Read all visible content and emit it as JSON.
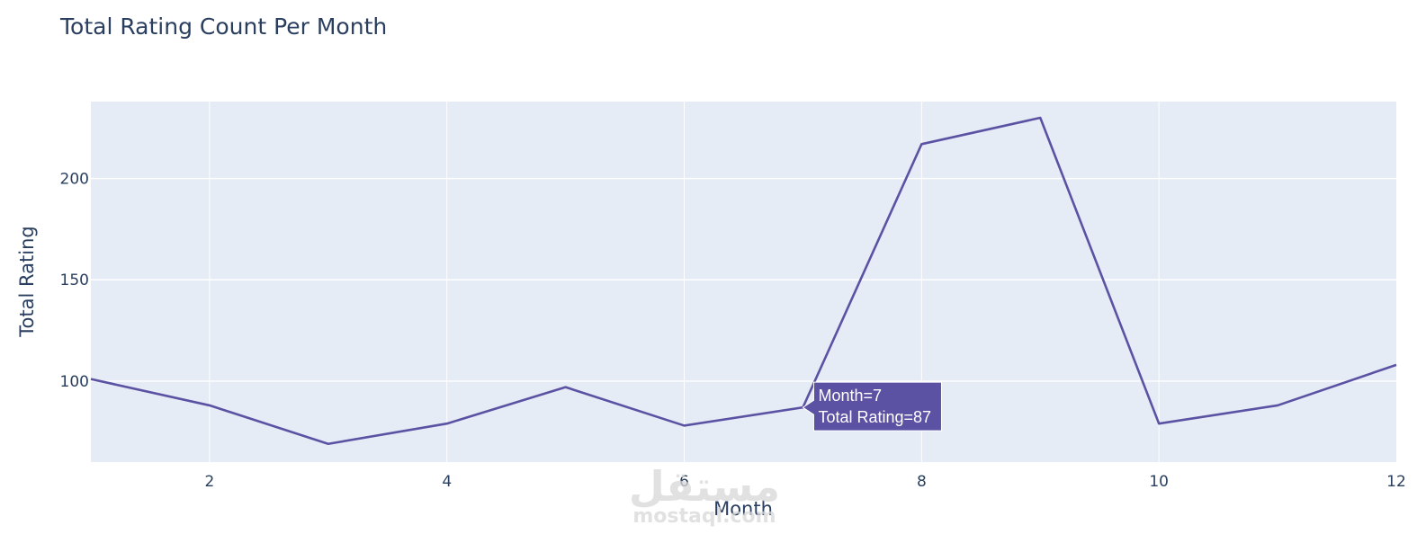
{
  "chart_data": {
    "type": "line",
    "title": "Total Rating Count Per Month",
    "xlabel": "Month",
    "ylabel": "Total Rating",
    "x": [
      1,
      2,
      3,
      4,
      5,
      6,
      7,
      8,
      9,
      10,
      11,
      12
    ],
    "values": [
      101,
      88,
      69,
      79,
      97,
      78,
      87,
      217,
      230,
      79,
      88,
      108
    ],
    "xlim": [
      1,
      12
    ],
    "ylim": [
      60,
      238
    ],
    "xticks": [
      2,
      4,
      6,
      8,
      10,
      12
    ],
    "yticks": [
      100,
      150,
      200
    ],
    "grid": true,
    "line_color": "#5b52a3",
    "plot_bg": "#e5ecf6",
    "tooltip": {
      "index": 6,
      "line1": "Month=7",
      "line2": "Total Rating=87"
    }
  },
  "watermark": {
    "arabic": "مستقل",
    "latin": "mostaql.com"
  }
}
